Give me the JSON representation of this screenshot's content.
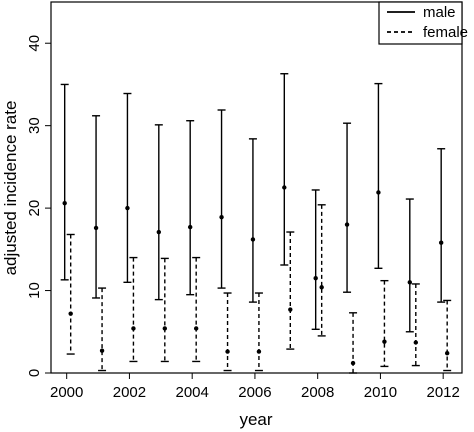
{
  "chart_data": {
    "type": "errorbar",
    "xlabel": "year",
    "ylabel": "adjusted incidence rate",
    "xlim": [
      1999.5,
      2012.6
    ],
    "ylim": [
      0,
      45
    ],
    "x_ticks": [
      2000,
      2002,
      2004,
      2006,
      2008,
      2010,
      2012
    ],
    "x_tick_labels": [
      "2000",
      "2002",
      "2004",
      "2006",
      "2008",
      "2010",
      "2012"
    ],
    "y_ticks": [
      0,
      10,
      20,
      30,
      40
    ],
    "y_tick_labels": [
      "0",
      "10",
      "20",
      "30",
      "40"
    ],
    "grid": false,
    "legend_position": "top-right",
    "series": [
      {
        "name": "male",
        "line_style": "solid",
        "x": [
          2000,
          2001,
          2002,
          2003,
          2004,
          2005,
          2006,
          2007,
          2008,
          2009,
          2010,
          2011,
          2012
        ],
        "point": [
          20.6,
          17.6,
          20.0,
          17.1,
          17.7,
          18.9,
          16.2,
          22.5,
          11.5,
          18.0,
          21.9,
          11.0,
          15.8
        ],
        "lower": [
          11.3,
          9.1,
          11.0,
          8.9,
          9.5,
          10.3,
          8.6,
          13.1,
          5.3,
          9.8,
          12.7,
          5.0,
          8.6
        ],
        "upper": [
          35.0,
          31.2,
          33.9,
          30.1,
          30.6,
          31.9,
          28.4,
          36.3,
          22.2,
          30.3,
          35.1,
          21.1,
          27.2
        ]
      },
      {
        "name": "female",
        "line_style": "dashed",
        "x": [
          2000,
          2001,
          2002,
          2003,
          2004,
          2005,
          2006,
          2007,
          2008,
          2009,
          2010,
          2011,
          2012
        ],
        "point": [
          7.2,
          2.7,
          5.4,
          5.4,
          5.4,
          2.6,
          2.6,
          7.7,
          10.4,
          1.2,
          3.8,
          3.7,
          2.4
        ],
        "lower": [
          2.3,
          0.3,
          1.4,
          1.4,
          1.4,
          0.3,
          0.3,
          2.9,
          4.5,
          0.0,
          0.8,
          0.9,
          0.3
        ],
        "upper": [
          16.8,
          10.3,
          14.0,
          13.9,
          14.0,
          9.7,
          9.7,
          17.1,
          20.4,
          7.3,
          11.2,
          10.8,
          8.8
        ]
      }
    ]
  }
}
